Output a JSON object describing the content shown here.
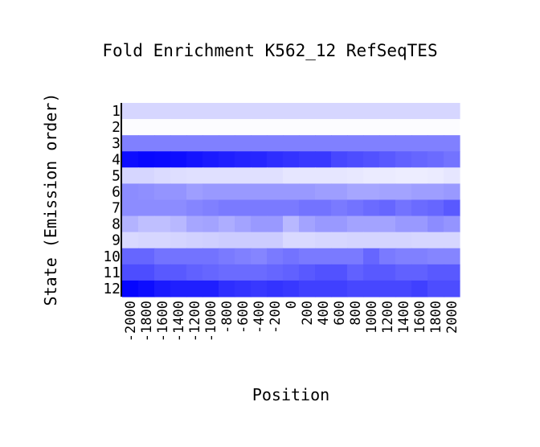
{
  "chart_data": {
    "type": "heatmap",
    "title": "Fold Enrichment K562_12 RefSeqTES",
    "xlabel": "Position",
    "ylabel": "State (Emission order)",
    "x": [
      "-2000",
      "-1800",
      "-1600",
      "-1400",
      "-1200",
      "-1000",
      "-800",
      "-600",
      "-400",
      "-200",
      "0",
      "200",
      "400",
      "600",
      "800",
      "1000",
      "1200",
      "1400",
      "1600",
      "1800",
      "2000"
    ],
    "y": [
      "1",
      "2",
      "3",
      "4",
      "5",
      "6",
      "7",
      "8",
      "9",
      "10",
      "11",
      "12"
    ],
    "color_low": "#ffffff",
    "color_high": "#0000ff",
    "intensity_range": [
      0,
      1
    ],
    "values": [
      [
        0.16,
        0.16,
        0.16,
        0.16,
        0.16,
        0.16,
        0.16,
        0.16,
        0.16,
        0.16,
        0.16,
        0.16,
        0.16,
        0.16,
        0.16,
        0.16,
        0.16,
        0.16,
        0.16,
        0.16,
        0.16
      ],
      [
        0.01,
        0.01,
        0.01,
        0.01,
        0.01,
        0.01,
        0.01,
        0.01,
        0.01,
        0.01,
        0.01,
        0.01,
        0.01,
        0.01,
        0.01,
        0.01,
        0.01,
        0.01,
        0.01,
        0.01,
        0.01
      ],
      [
        0.5,
        0.5,
        0.5,
        0.5,
        0.5,
        0.5,
        0.5,
        0.5,
        0.5,
        0.5,
        0.5,
        0.5,
        0.5,
        0.5,
        0.5,
        0.5,
        0.5,
        0.5,
        0.5,
        0.5,
        0.5
      ],
      [
        0.95,
        0.97,
        0.96,
        0.95,
        0.92,
        0.9,
        0.88,
        0.86,
        0.85,
        0.82,
        0.8,
        0.78,
        0.78,
        0.72,
        0.7,
        0.68,
        0.65,
        0.62,
        0.6,
        0.58,
        0.55
      ],
      [
        0.16,
        0.16,
        0.14,
        0.13,
        0.12,
        0.12,
        0.12,
        0.12,
        0.12,
        0.12,
        0.1,
        0.1,
        0.1,
        0.1,
        0.09,
        0.08,
        0.08,
        0.07,
        0.07,
        0.08,
        0.1
      ],
      [
        0.45,
        0.44,
        0.42,
        0.42,
        0.38,
        0.4,
        0.4,
        0.4,
        0.4,
        0.4,
        0.4,
        0.4,
        0.38,
        0.38,
        0.35,
        0.35,
        0.36,
        0.36,
        0.38,
        0.38,
        0.4
      ],
      [
        0.45,
        0.45,
        0.45,
        0.45,
        0.48,
        0.5,
        0.52,
        0.52,
        0.52,
        0.52,
        0.52,
        0.55,
        0.55,
        0.52,
        0.55,
        0.58,
        0.6,
        0.55,
        0.58,
        0.6,
        0.65
      ],
      [
        0.3,
        0.25,
        0.25,
        0.28,
        0.35,
        0.36,
        0.32,
        0.36,
        0.4,
        0.4,
        0.28,
        0.36,
        0.4,
        0.4,
        0.36,
        0.36,
        0.36,
        0.4,
        0.4,
        0.45,
        0.42
      ],
      [
        0.15,
        0.16,
        0.16,
        0.17,
        0.18,
        0.19,
        0.2,
        0.2,
        0.2,
        0.2,
        0.15,
        0.15,
        0.16,
        0.16,
        0.17,
        0.17,
        0.17,
        0.17,
        0.16,
        0.16,
        0.16
      ],
      [
        0.6,
        0.6,
        0.55,
        0.55,
        0.55,
        0.55,
        0.52,
        0.5,
        0.48,
        0.52,
        0.55,
        0.52,
        0.52,
        0.52,
        0.52,
        0.6,
        0.52,
        0.5,
        0.5,
        0.48,
        0.48
      ],
      [
        0.7,
        0.7,
        0.65,
        0.65,
        0.62,
        0.6,
        0.58,
        0.58,
        0.58,
        0.6,
        0.62,
        0.65,
        0.68,
        0.68,
        0.62,
        0.65,
        0.65,
        0.62,
        0.62,
        0.65,
        0.65
      ],
      [
        0.98,
        0.95,
        0.9,
        0.88,
        0.88,
        0.88,
        0.82,
        0.8,
        0.78,
        0.8,
        0.78,
        0.75,
        0.75,
        0.75,
        0.72,
        0.72,
        0.72,
        0.72,
        0.75,
        0.7,
        0.7
      ]
    ],
    "legend": "none",
    "grid": false
  }
}
